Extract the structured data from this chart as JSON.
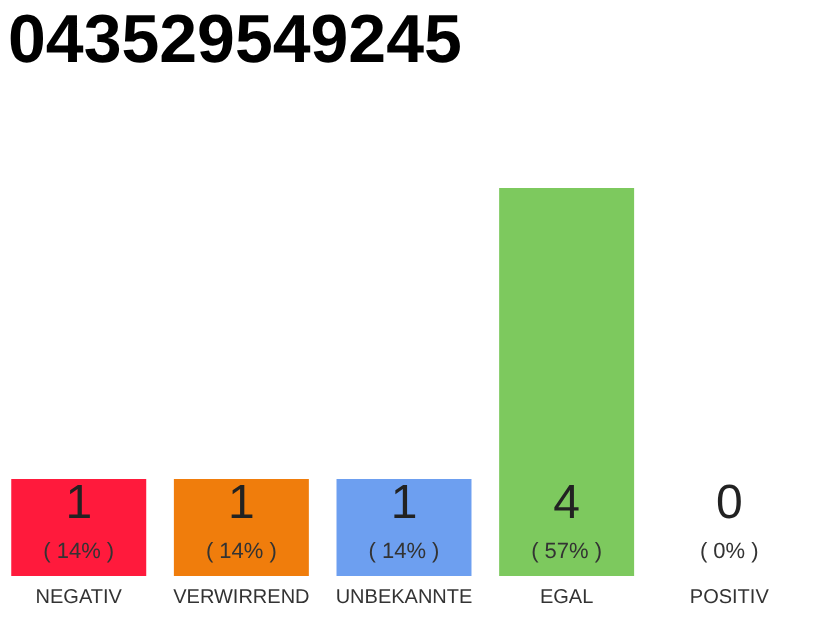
{
  "chart_data": {
    "type": "bar",
    "title": "043529549245",
    "categories": [
      "NEGATIV",
      "VERWIRREND",
      "UNBEKANNTE",
      "EGAL",
      "POSITIV"
    ],
    "values": [
      1,
      1,
      1,
      4,
      0
    ],
    "colors": [
      "#ff1a3c",
      "#f07d0c",
      "#6d9ff0",
      "#7dc95e",
      "#cccccc"
    ],
    "ylim": [
      0,
      4
    ],
    "data_labels": true,
    "annotations": [
      "( 14% )",
      "( 14% )",
      "( 14% )",
      "( 57% )",
      "( 0% )"
    ]
  }
}
